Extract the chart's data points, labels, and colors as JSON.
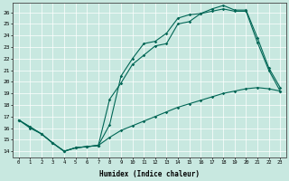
{
  "title": "",
  "xlabel": "Humidex (Indice chaleur)",
  "bg_color": "#c8e8e0",
  "line_color": "#006655",
  "xlim": [
    -0.5,
    23.5
  ],
  "ylim": [
    13.5,
    26.8
  ],
  "xticks": [
    0,
    1,
    2,
    3,
    4,
    5,
    6,
    7,
    8,
    9,
    10,
    11,
    12,
    13,
    14,
    15,
    16,
    17,
    18,
    19,
    20,
    21,
    22,
    23
  ],
  "yticks": [
    14,
    15,
    16,
    17,
    18,
    19,
    20,
    21,
    22,
    23,
    24,
    25,
    26
  ],
  "line1_x": [
    0,
    1,
    2,
    3,
    4,
    5,
    6,
    7,
    8,
    9,
    10,
    11,
    12,
    13,
    14,
    15,
    16,
    17,
    18,
    19,
    20,
    21,
    22,
    23
  ],
  "line1_y": [
    16.7,
    16.1,
    15.5,
    14.7,
    14.0,
    14.3,
    14.4,
    14.5,
    18.5,
    19.9,
    21.5,
    22.3,
    23.1,
    23.3,
    25.0,
    25.2,
    25.9,
    26.1,
    26.3,
    26.1,
    26.1,
    23.4,
    21.0,
    19.2
  ],
  "line2_x": [
    0,
    1,
    2,
    3,
    4,
    5,
    6,
    7,
    8,
    9,
    10,
    11,
    12,
    13,
    14,
    15,
    16,
    17,
    18,
    19,
    20,
    21,
    22,
    23
  ],
  "line2_y": [
    16.7,
    16.1,
    15.5,
    14.7,
    14.0,
    14.3,
    14.4,
    14.5,
    16.3,
    20.5,
    22.0,
    23.3,
    23.5,
    24.2,
    25.5,
    25.8,
    25.9,
    26.3,
    26.6,
    26.2,
    26.2,
    23.8,
    21.2,
    19.5
  ],
  "line3_x": [
    0,
    1,
    2,
    3,
    4,
    5,
    6,
    7,
    8,
    9,
    10,
    11,
    12,
    13,
    14,
    15,
    16,
    17,
    18,
    19,
    20,
    21,
    22,
    23
  ],
  "line3_y": [
    16.7,
    16.0,
    15.5,
    14.7,
    14.0,
    14.3,
    14.4,
    14.5,
    15.2,
    15.8,
    16.2,
    16.6,
    17.0,
    17.4,
    17.8,
    18.1,
    18.4,
    18.7,
    19.0,
    19.2,
    19.4,
    19.5,
    19.4,
    19.2
  ]
}
